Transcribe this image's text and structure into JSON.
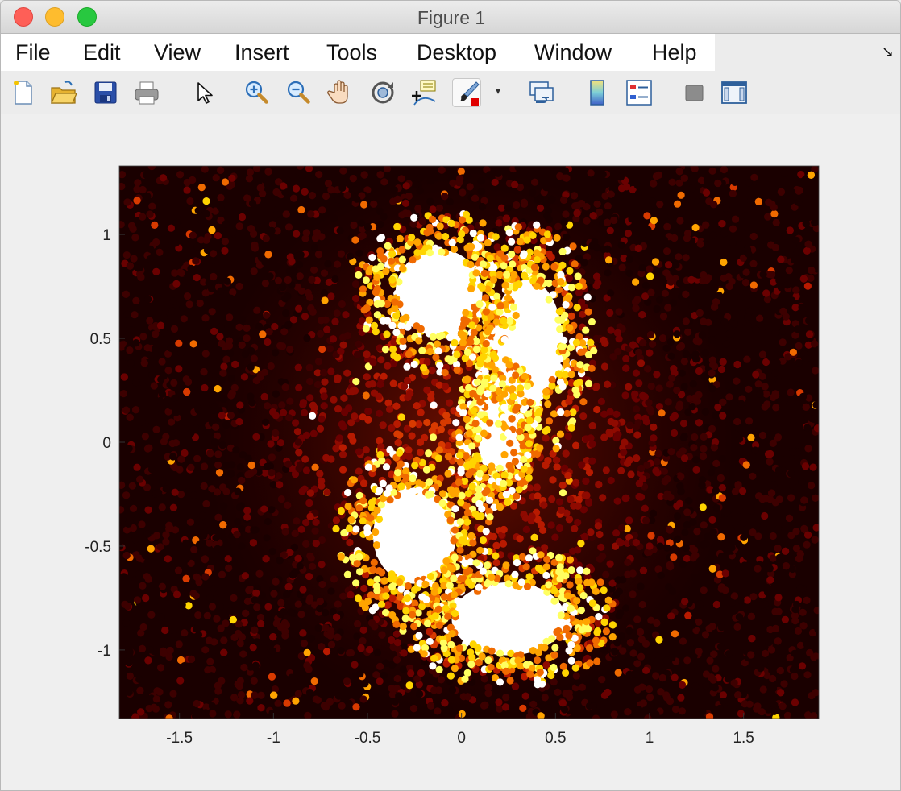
{
  "window": {
    "title": "Figure 1"
  },
  "menu": {
    "items": [
      "File",
      "Edit",
      "View",
      "Insert",
      "Tools",
      "Desktop",
      "Window",
      "Help"
    ]
  },
  "toolbar": {
    "icons": [
      "new-figure-icon",
      "open-file-icon",
      "save-icon",
      "print-icon",
      "select-pointer-icon",
      "zoom-in-icon",
      "zoom-out-icon",
      "pan-hand-icon",
      "rotate-3d-icon",
      "data-cursor-icon",
      "brush-icon",
      "link-plot-icon",
      "colorbar-icon",
      "legend-icon",
      "hide-plot-tools-icon",
      "show-plot-tools-icon"
    ]
  },
  "chart_data": {
    "type": "scatter",
    "description_colormap": "hot",
    "xlim": [
      -1.82,
      1.9
    ],
    "ylim": [
      -1.33,
      1.33
    ],
    "xticks": [
      -1.5,
      -1,
      -0.5,
      0,
      0.5,
      1,
      1.5
    ],
    "xtick_labels": [
      "-1.5",
      "-1",
      "-0.5",
      "0",
      "0.5",
      "1",
      "1.5"
    ],
    "yticks": [
      -1,
      -0.5,
      0,
      0.5,
      1
    ],
    "ytick_labels": [
      "-1",
      "-0.5",
      "0",
      "0.5",
      "1"
    ],
    "title": "",
    "xlabel": "",
    "ylabel": "",
    "grid": false,
    "background_color": "#1a0000",
    "bright_regions": [
      {
        "cx": -0.12,
        "cy": 0.72,
        "rx": 0.42,
        "ry": 0.38
      },
      {
        "cx": 0.35,
        "cy": 0.48,
        "rx": 0.34,
        "ry": 0.55
      },
      {
        "cx": 0.2,
        "cy": 0.05,
        "rx": 0.22,
        "ry": 0.35
      },
      {
        "cx": -0.25,
        "cy": -0.45,
        "rx": 0.4,
        "ry": 0.42
      },
      {
        "cx": 0.25,
        "cy": -0.85,
        "rx": 0.55,
        "ry": 0.32
      }
    ],
    "colors": [
      "#1a0000",
      "#3d0000",
      "#6a0000",
      "#8f0a00",
      "#b81a00",
      "#d83a00",
      "#f06a00",
      "#ffa400",
      "#ffd400",
      "#ffff60",
      "#ffffff"
    ]
  }
}
